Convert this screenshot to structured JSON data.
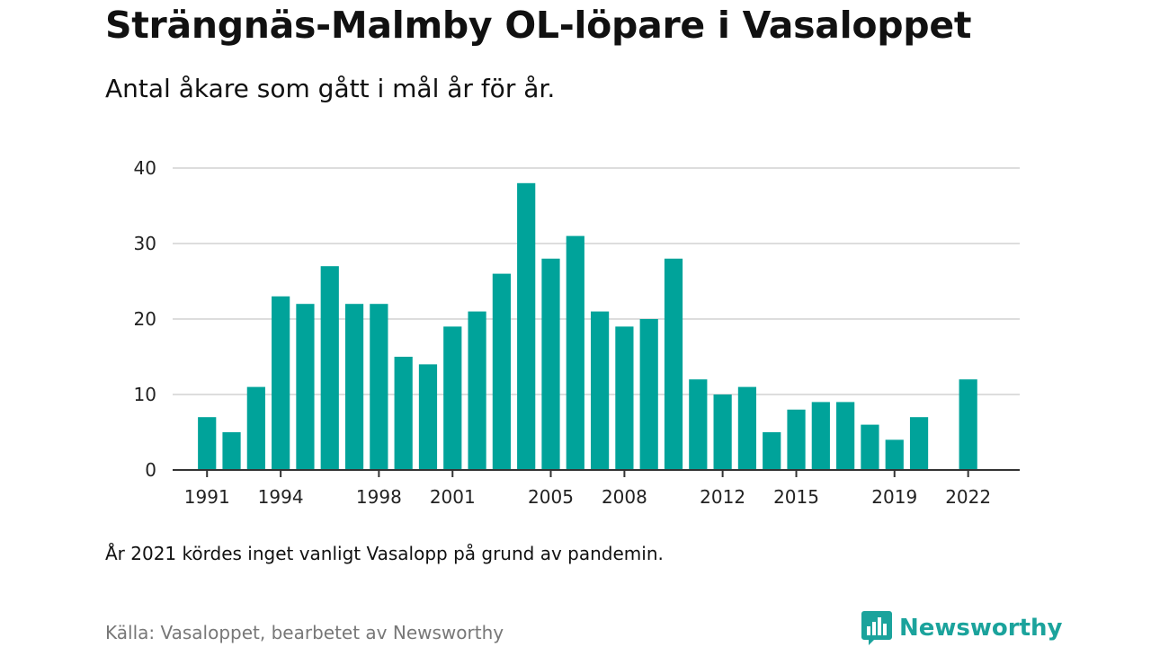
{
  "title": "Strängnäs-Malmby OL-löpare i Vasaloppet",
  "subtitle": "Antal åkare som gått i mål år för år.",
  "note": "År 2021 kördes inget vanligt Vasalopp på grund av pandemin.",
  "source": "Källa: Vasaloppet, bearbetet av Newsworthy",
  "brand": {
    "name": "Newsworthy",
    "icon": "newsworthy-logo-icon",
    "color": "#1ba39c"
  },
  "colors": {
    "bar": "#00a39a",
    "grid": "#dddddd",
    "axis": "#333333"
  },
  "chart_data": {
    "type": "bar",
    "x": [
      1991,
      1992,
      1993,
      1994,
      1995,
      1996,
      1997,
      1998,
      1999,
      2000,
      2001,
      2002,
      2003,
      2004,
      2005,
      2006,
      2007,
      2008,
      2009,
      2010,
      2011,
      2012,
      2013,
      2014,
      2015,
      2016,
      2017,
      2018,
      2019,
      2020,
      2022
    ],
    "values": [
      7,
      5,
      11,
      23,
      22,
      27,
      22,
      22,
      15,
      14,
      19,
      21,
      26,
      38,
      28,
      31,
      21,
      19,
      20,
      28,
      12,
      10,
      11,
      5,
      8,
      9,
      9,
      6,
      4,
      7,
      12
    ],
    "x_ticks": [
      1991,
      1994,
      1998,
      2001,
      2005,
      2008,
      2012,
      2015,
      2019,
      2022
    ],
    "y_ticks": [
      0,
      10,
      20,
      30,
      40
    ],
    "ylim": [
      0,
      40
    ],
    "xlim": [
      1989.6,
      2024.1
    ],
    "grid": true,
    "xlabel": "",
    "ylabel": ""
  }
}
